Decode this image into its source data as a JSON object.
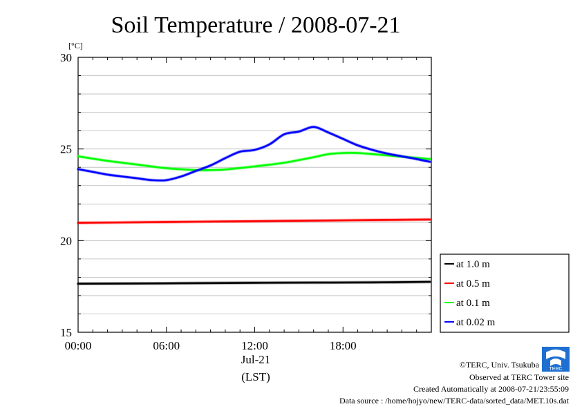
{
  "chart_data": {
    "type": "line",
    "title": "Soil Temperature / 2008-07-21",
    "ylabel": "[°C]",
    "xlabel": "(LST)",
    "x_date_label": "Jul-21",
    "ylim": [
      15,
      30
    ],
    "xlim": [
      0,
      24
    ],
    "y_ticks": [
      "15",
      "20",
      "25",
      "30"
    ],
    "x_ticks": [
      {
        "value": 0,
        "label": "00:00"
      },
      {
        "value": 6,
        "label": "06:00"
      },
      {
        "value": 12,
        "label": "12:00"
      },
      {
        "value": 18,
        "label": "18:00"
      }
    ],
    "grid": true,
    "legend_position": "right",
    "series": [
      {
        "name": "at 1.0 m",
        "color": "#000000",
        "x": [
          0,
          4,
          8,
          12,
          16,
          20,
          23.9
        ],
        "y": [
          17.65,
          17.66,
          17.68,
          17.7,
          17.71,
          17.72,
          17.75
        ]
      },
      {
        "name": "at 0.5 m",
        "color": "#ff0000",
        "x": [
          0,
          4,
          8,
          12,
          16,
          20,
          23.9
        ],
        "y": [
          20.97,
          21.0,
          21.03,
          21.06,
          21.09,
          21.12,
          21.15
        ]
      },
      {
        "name": "at 0.1 m",
        "color": "#00ff00",
        "x": [
          0,
          2,
          4,
          6,
          8,
          9,
          10,
          12,
          14,
          16,
          17,
          18,
          19,
          20,
          22,
          23.9
        ],
        "y": [
          24.6,
          24.35,
          24.15,
          23.95,
          23.85,
          23.85,
          23.88,
          24.05,
          24.25,
          24.55,
          24.72,
          24.78,
          24.78,
          24.72,
          24.58,
          24.45
        ]
      },
      {
        "name": "at 0.02 m",
        "color": "#0000ff",
        "x": [
          0,
          1,
          2,
          3,
          4,
          5,
          6,
          7,
          8,
          9,
          10,
          11,
          12,
          13,
          14,
          15,
          16,
          17,
          18,
          19,
          20,
          21,
          22,
          23,
          23.9
        ],
        "y": [
          23.9,
          23.75,
          23.6,
          23.5,
          23.4,
          23.3,
          23.3,
          23.5,
          23.8,
          24.1,
          24.5,
          24.85,
          24.95,
          25.25,
          25.8,
          25.95,
          26.2,
          25.9,
          25.55,
          25.2,
          24.95,
          24.75,
          24.6,
          24.45,
          24.3
        ]
      }
    ]
  },
  "footer": {
    "copyright": "©TERC, Univ. Tsukuba",
    "observed": "Observed at TERC Tower site",
    "created": "Created Automatically at 2008-07-21/23:55:09",
    "source": "Data source : /home/hojyo/new/TERC-data/sorted_data/MET.10s.dat",
    "logo_text": "TERC"
  }
}
